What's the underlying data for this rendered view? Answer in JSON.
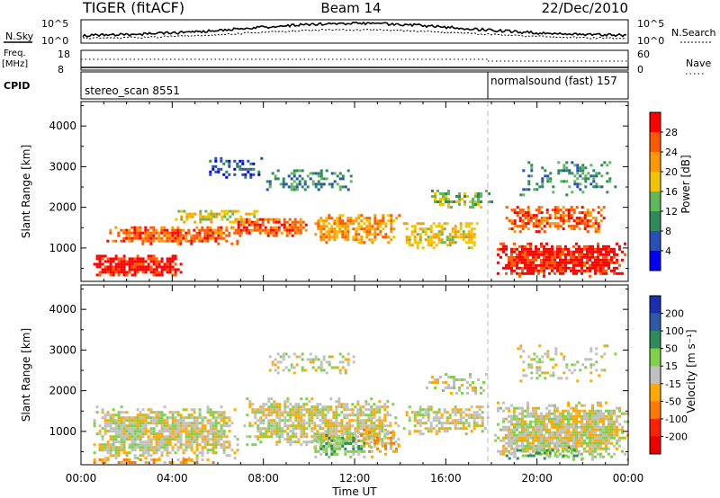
{
  "header": {
    "radar": "TIGER (fitACF)",
    "beam": "Beam 14",
    "date": "22/Dec/2010"
  },
  "strips": {
    "nsky_label": "N.Sky",
    "nsky_ticks": [
      "10^5",
      "10^0"
    ],
    "nsearch_label": "N.Search",
    "freq_label_line1": "Freq.",
    "freq_label_line2": "[MHz]",
    "freq_ticks": [
      "18",
      "8"
    ],
    "nave_label": "Nave",
    "nave_ticks": [
      "60",
      "0"
    ],
    "cpid_label": "CPID",
    "cpid_segments": [
      "stereo_scan 8551",
      "normalsound (fast) 157"
    ]
  },
  "chart_data": [
    {
      "type": "heatmap",
      "panel": "power",
      "xlabel": "Time UT",
      "ylabel": "Slant Range [km]",
      "xlim": [
        0,
        24
      ],
      "ylim": [
        180,
        4600
      ],
      "x_ticks": [
        "00:00",
        "04:00",
        "08:00",
        "12:00",
        "16:00",
        "20:00",
        "00:00"
      ],
      "y_ticks": [
        1000,
        2000,
        3000,
        4000
      ],
      "colorbar": {
        "label": "Power [dB]",
        "ticks": [
          "4",
          "8",
          "12",
          "16",
          "20",
          "24",
          "28"
        ],
        "range": [
          0,
          30
        ],
        "colors": [
          "#0000ff",
          "#2850b8",
          "#2e8b57",
          "#5fb85a",
          "#f2c400",
          "#ff9900",
          "#ff5a00",
          "#ff0000"
        ]
      },
      "regions": [
        {
          "t0": 0.3,
          "t1": 4.5,
          "r0": 300,
          "r1": 900,
          "level": 7,
          "density": 0.85
        },
        {
          "t0": 1.0,
          "t1": 7.0,
          "r0": 1100,
          "r1": 1600,
          "level": 6,
          "density": 0.8
        },
        {
          "t0": 4.0,
          "t1": 8.0,
          "r0": 1600,
          "r1": 2000,
          "level": 4,
          "density": 0.55
        },
        {
          "t0": 6.5,
          "t1": 10.0,
          "r0": 1300,
          "r1": 1800,
          "level": 6,
          "density": 0.75
        },
        {
          "t0": 10.0,
          "t1": 14.0,
          "r0": 1100,
          "r1": 1900,
          "level": 5,
          "density": 0.7
        },
        {
          "t0": 14.0,
          "t1": 17.5,
          "r0": 1000,
          "r1": 1700,
          "level": 4,
          "density": 0.6
        },
        {
          "t0": 8.0,
          "t1": 12.0,
          "r0": 2400,
          "r1": 3000,
          "level": 2,
          "density": 0.4
        },
        {
          "t0": 5.5,
          "t1": 8.0,
          "r0": 2700,
          "r1": 3300,
          "level": 1,
          "density": 0.35
        },
        {
          "t0": 15.0,
          "t1": 18.0,
          "r0": 2000,
          "r1": 2500,
          "level": 3,
          "density": 0.5
        },
        {
          "t0": 18.0,
          "t1": 24.0,
          "r0": 300,
          "r1": 1200,
          "level": 7,
          "density": 0.9
        },
        {
          "t0": 18.5,
          "t1": 23.0,
          "r0": 1400,
          "r1": 2100,
          "level": 6,
          "density": 0.65
        },
        {
          "t0": 19.0,
          "t1": 23.5,
          "r0": 2300,
          "r1": 3200,
          "level": 2,
          "density": 0.3
        }
      ]
    },
    {
      "type": "heatmap",
      "panel": "velocity",
      "xlabel": "Time UT",
      "ylabel": "Slant Range [km]",
      "xlim": [
        0,
        24
      ],
      "ylim": [
        180,
        4600
      ],
      "x_ticks": [
        "00:00",
        "04:00",
        "08:00",
        "12:00",
        "16:00",
        "20:00",
        "00:00"
      ],
      "y_ticks": [
        1000,
        2000,
        3000,
        4000
      ],
      "colorbar": {
        "label": "Velocity [m s⁻¹]",
        "ticks": [
          "200",
          "100",
          "50",
          "15",
          "-15",
          "-50",
          "-100",
          "-200"
        ],
        "colors": [
          "#1c2fb0",
          "#2e5aa8",
          "#2e8b57",
          "#7fd04a",
          "#c0c0c0",
          "#ffaa00",
          "#ff7a00",
          "#ff2200",
          "#ee0000"
        ]
      },
      "regions": [
        {
          "t0": 0.3,
          "t1": 7.0,
          "r0": 300,
          "r1": 1700,
          "level": 4,
          "density": 0.85
        },
        {
          "t0": 7.0,
          "t1": 14.0,
          "r0": 600,
          "r1": 1900,
          "level": 4,
          "density": 0.75
        },
        {
          "t0": 10.0,
          "t1": 12.5,
          "r0": 350,
          "r1": 1000,
          "level": 3,
          "density": 0.6
        },
        {
          "t0": 12.0,
          "t1": 14.0,
          "r0": 400,
          "r1": 1200,
          "level": 5,
          "density": 0.5
        },
        {
          "t0": 14.0,
          "t1": 18.0,
          "r0": 900,
          "r1": 1700,
          "level": 4,
          "density": 0.6
        },
        {
          "t0": 8.0,
          "t1": 12.0,
          "r0": 2400,
          "r1": 3000,
          "level": 4,
          "density": 0.35
        },
        {
          "t0": 15.0,
          "t1": 18.0,
          "r0": 1900,
          "r1": 2500,
          "level": 4,
          "density": 0.45
        },
        {
          "t0": 18.0,
          "t1": 24.0,
          "r0": 300,
          "r1": 1800,
          "level": 4,
          "density": 0.9
        },
        {
          "t0": 18.5,
          "t1": 22.0,
          "r0": 350,
          "r1": 700,
          "level": 3,
          "density": 0.45
        },
        {
          "t0": 0.3,
          "t1": 6.0,
          "r0": 200,
          "r1": 400,
          "level": 5,
          "density": 0.5
        },
        {
          "t0": 19.0,
          "t1": 23.5,
          "r0": 2200,
          "r1": 3200,
          "level": 4,
          "density": 0.25
        }
      ]
    }
  ]
}
